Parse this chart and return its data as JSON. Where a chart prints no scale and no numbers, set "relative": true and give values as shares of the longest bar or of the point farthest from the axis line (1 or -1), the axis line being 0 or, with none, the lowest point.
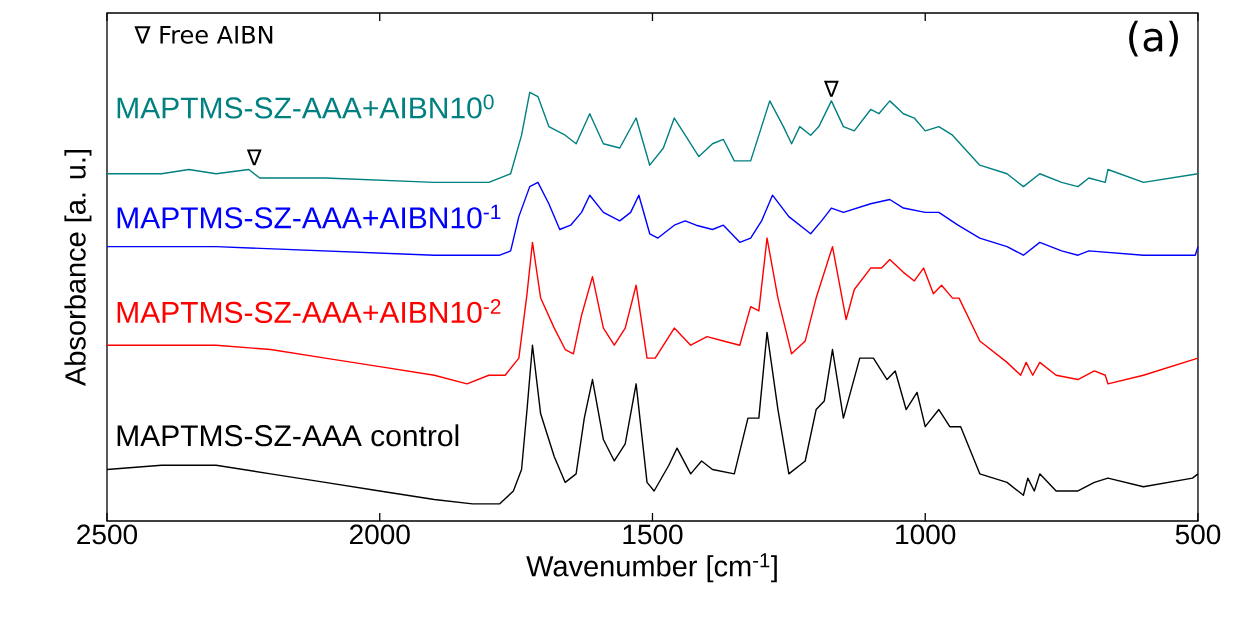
{
  "chart_data": {
    "type": "line",
    "relative": true,
    "xlabel": "Wavenumber [cm$^{-1}$]",
    "ylabel": "Absorbance [a. u.]",
    "xlim": [
      2500,
      500
    ],
    "xticks": [
      2500,
      2000,
      1500,
      1000,
      500
    ],
    "annotations": [
      "∇ Free AIBN",
      "(a)",
      {
        "text": "∇",
        "x": 2230,
        "y": 0.82
      },
      {
        "text": "∇",
        "x": 1172,
        "y": 0.98
      }
    ],
    "series": [
      {
        "name": "MAPTMS-SZ-AAA+AIBN10$^{0}$",
        "color": "#008080",
        "x": [
          2500,
          2400,
          2350,
          2300,
          2240,
          2220,
          2100,
          1900,
          1800,
          1760,
          1740,
          1725,
          1710,
          1690,
          1660,
          1640,
          1615,
          1590,
          1560,
          1530,
          1505,
          1480,
          1460,
          1440,
          1415,
          1390,
          1370,
          1350,
          1320,
          1300,
          1285,
          1260,
          1245,
          1230,
          1210,
          1195,
          1172,
          1150,
          1130,
          1100,
          1085,
          1065,
          1040,
          1020,
          1000,
          975,
          950,
          900,
          850,
          820,
          790,
          750,
          720,
          700,
          670,
          665,
          600,
          500
        ],
        "values": [
          0.81,
          0.81,
          0.82,
          0.81,
          0.82,
          0.8,
          0.8,
          0.79,
          0.79,
          0.81,
          0.9,
          1.0,
          0.99,
          0.92,
          0.9,
          0.88,
          0.95,
          0.88,
          0.87,
          0.94,
          0.83,
          0.87,
          0.94,
          0.9,
          0.85,
          0.88,
          0.89,
          0.84,
          0.84,
          0.92,
          0.98,
          0.92,
          0.88,
          0.92,
          0.9,
          0.92,
          0.98,
          0.92,
          0.91,
          0.96,
          0.95,
          0.98,
          0.95,
          0.94,
          0.91,
          0.92,
          0.9,
          0.83,
          0.81,
          0.78,
          0.81,
          0.79,
          0.78,
          0.8,
          0.79,
          0.82,
          0.79,
          0.81
        ]
      },
      {
        "name": "MAPTMS-SZ-AAA+AIBN10$^{-1}$",
        "color": "#0000ff",
        "x": [
          2500,
          2350,
          2300,
          2100,
          1900,
          1820,
          1780,
          1760,
          1745,
          1725,
          1710,
          1690,
          1670,
          1650,
          1630,
          1615,
          1590,
          1560,
          1540,
          1525,
          1505,
          1490,
          1460,
          1440,
          1420,
          1390,
          1370,
          1340,
          1320,
          1300,
          1280,
          1250,
          1210,
          1190,
          1172,
          1150,
          1100,
          1065,
          1040,
          1000,
          975,
          940,
          900,
          850,
          820,
          790,
          750,
          720,
          700,
          600,
          550,
          505,
          500
        ],
        "values": [
          0.64,
          0.64,
          0.64,
          0.63,
          0.62,
          0.62,
          0.62,
          0.63,
          0.71,
          0.78,
          0.79,
          0.74,
          0.68,
          0.69,
          0.72,
          0.76,
          0.72,
          0.7,
          0.72,
          0.76,
          0.67,
          0.66,
          0.69,
          0.7,
          0.69,
          0.68,
          0.69,
          0.65,
          0.66,
          0.7,
          0.76,
          0.71,
          0.67,
          0.7,
          0.73,
          0.72,
          0.74,
          0.75,
          0.73,
          0.72,
          0.72,
          0.69,
          0.66,
          0.64,
          0.62,
          0.65,
          0.63,
          0.62,
          0.63,
          0.62,
          0.62,
          0.62,
          0.64
        ]
      },
      {
        "name": "MAPTMS-SZ-AAA+AIBN10$^{-2}$",
        "color": "#ff0000",
        "x": [
          2500,
          2400,
          2300,
          2200,
          2100,
          2000,
          1900,
          1840,
          1800,
          1770,
          1745,
          1730,
          1720,
          1705,
          1680,
          1660,
          1645,
          1630,
          1610,
          1590,
          1570,
          1550,
          1530,
          1510,
          1495,
          1460,
          1430,
          1400,
          1370,
          1340,
          1320,
          1305,
          1290,
          1270,
          1245,
          1220,
          1200,
          1170,
          1145,
          1130,
          1100,
          1080,
          1065,
          1040,
          1020,
          1003,
          985,
          970,
          950,
          938,
          900,
          850,
          825,
          815,
          803,
          790,
          760,
          720,
          690,
          670,
          665,
          600,
          500
        ],
        "values": [
          0.41,
          0.41,
          0.41,
          0.4,
          0.38,
          0.36,
          0.34,
          0.32,
          0.34,
          0.34,
          0.38,
          0.53,
          0.65,
          0.52,
          0.45,
          0.4,
          0.39,
          0.48,
          0.57,
          0.45,
          0.41,
          0.45,
          0.55,
          0.38,
          0.38,
          0.45,
          0.41,
          0.43,
          0.42,
          0.41,
          0.5,
          0.49,
          0.66,
          0.52,
          0.39,
          0.42,
          0.52,
          0.64,
          0.47,
          0.54,
          0.59,
          0.59,
          0.61,
          0.58,
          0.56,
          0.59,
          0.53,
          0.55,
          0.52,
          0.52,
          0.42,
          0.37,
          0.34,
          0.37,
          0.34,
          0.37,
          0.34,
          0.33,
          0.35,
          0.34,
          0.32,
          0.34,
          0.38
        ]
      },
      {
        "name": "MAPTMS-SZ-AAA control",
        "color": "#000000",
        "x": [
          2500,
          2400,
          2300,
          2200,
          2100,
          2000,
          1900,
          1830,
          1780,
          1755,
          1740,
          1730,
          1720,
          1705,
          1680,
          1660,
          1640,
          1625,
          1610,
          1590,
          1570,
          1550,
          1530,
          1510,
          1497,
          1470,
          1455,
          1430,
          1410,
          1390,
          1350,
          1325,
          1305,
          1290,
          1270,
          1250,
          1220,
          1200,
          1185,
          1170,
          1150,
          1120,
          1095,
          1070,
          1055,
          1035,
          1015,
          1000,
          975,
          955,
          935,
          900,
          850,
          820,
          812,
          800,
          790,
          760,
          720,
          690,
          665,
          600,
          510,
          500
        ],
        "values": [
          0.12,
          0.13,
          0.13,
          0.11,
          0.09,
          0.07,
          0.05,
          0.04,
          0.04,
          0.07,
          0.12,
          0.26,
          0.41,
          0.25,
          0.15,
          0.09,
          0.11,
          0.24,
          0.33,
          0.19,
          0.14,
          0.18,
          0.32,
          0.09,
          0.07,
          0.13,
          0.17,
          0.11,
          0.14,
          0.12,
          0.11,
          0.24,
          0.24,
          0.44,
          0.26,
          0.11,
          0.14,
          0.26,
          0.28,
          0.4,
          0.24,
          0.38,
          0.38,
          0.33,
          0.35,
          0.26,
          0.3,
          0.22,
          0.26,
          0.22,
          0.22,
          0.11,
          0.09,
          0.06,
          0.1,
          0.07,
          0.11,
          0.07,
          0.07,
          0.09,
          0.1,
          0.08,
          0.1,
          0.11
        ]
      }
    ]
  }
}
